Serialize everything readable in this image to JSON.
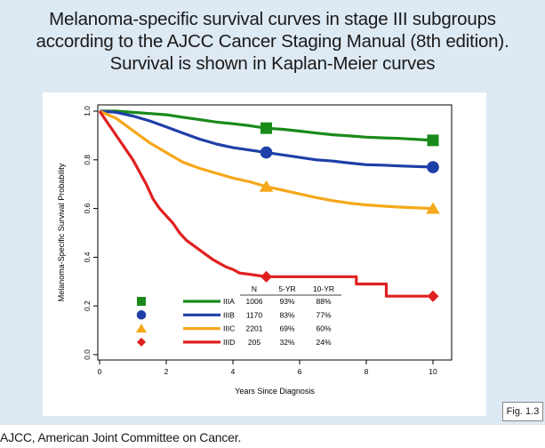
{
  "title_lines": [
    "Melanoma-specific survival curves in stage III subgroups",
    "according to the AJCC Cancer Staging Manual (8th edition).",
    "Survival is shown in Kaplan-Meier curves"
  ],
  "figure_tag": "Fig. 1.3",
  "footnote": "AJCC, American Joint Committee on Cancer.",
  "chart_data": {
    "type": "line",
    "title": "",
    "xlabel": "Years Since Diagnosis",
    "ylabel": "Melanoma-Specific Survival Probability",
    "xlim": [
      0,
      10
    ],
    "ylim": [
      0,
      1
    ],
    "xticks": [
      "0",
      "2",
      "4",
      "6",
      "8",
      "10"
    ],
    "yticks": [
      "0.0",
      "0.2",
      "0.4",
      "0.6",
      "0.8",
      "1.0"
    ],
    "grid": false,
    "series": [
      {
        "name": "IIIA",
        "color": "#1a8a1a",
        "marker": "square",
        "n": "1006",
        "five_yr": "93%",
        "ten_yr": "88%",
        "points": [
          [
            0,
            1.0
          ],
          [
            0.5,
            1.0
          ],
          [
            1,
            0.995
          ],
          [
            1.5,
            0.99
          ],
          [
            2,
            0.985
          ],
          [
            2.5,
            0.975
          ],
          [
            3,
            0.965
          ],
          [
            3.5,
            0.955
          ],
          [
            4,
            0.948
          ],
          [
            4.5,
            0.94
          ],
          [
            5,
            0.93
          ],
          [
            5.5,
            0.925
          ],
          [
            6,
            0.918
          ],
          [
            6.5,
            0.91
          ],
          [
            7,
            0.903
          ],
          [
            7.5,
            0.898
          ],
          [
            8,
            0.893
          ],
          [
            8.5,
            0.89
          ],
          [
            9,
            0.888
          ],
          [
            10,
            0.88
          ]
        ],
        "markers_at": [
          [
            5,
            0.93
          ],
          [
            10,
            0.88
          ]
        ]
      },
      {
        "name": "IIIB",
        "color": "#1f3fa8",
        "marker": "circle",
        "n": "1170",
        "five_yr": "83%",
        "ten_yr": "77%",
        "points": [
          [
            0,
            1.0
          ],
          [
            0.5,
            0.995
          ],
          [
            1,
            0.98
          ],
          [
            1.5,
            0.96
          ],
          [
            2,
            0.935
          ],
          [
            2.5,
            0.91
          ],
          [
            3,
            0.885
          ],
          [
            3.5,
            0.865
          ],
          [
            4,
            0.85
          ],
          [
            4.5,
            0.84
          ],
          [
            5,
            0.83
          ],
          [
            5.5,
            0.82
          ],
          [
            6,
            0.81
          ],
          [
            6.5,
            0.8
          ],
          [
            7,
            0.795
          ],
          [
            7.5,
            0.787
          ],
          [
            8,
            0.78
          ],
          [
            8.5,
            0.778
          ],
          [
            9,
            0.775
          ],
          [
            10,
            0.77
          ]
        ],
        "markers_at": [
          [
            5,
            0.83
          ],
          [
            10,
            0.77
          ]
        ]
      },
      {
        "name": "IIIC",
        "color": "#f5a81a",
        "marker": "triangle",
        "n": "2201",
        "five_yr": "69%",
        "ten_yr": "60%",
        "points": [
          [
            0,
            1.0
          ],
          [
            0.5,
            0.97
          ],
          [
            1,
            0.92
          ],
          [
            1.5,
            0.87
          ],
          [
            2,
            0.83
          ],
          [
            2.5,
            0.79
          ],
          [
            3,
            0.765
          ],
          [
            3.5,
            0.745
          ],
          [
            4,
            0.725
          ],
          [
            4.5,
            0.71
          ],
          [
            5,
            0.69
          ],
          [
            5.5,
            0.675
          ],
          [
            6,
            0.66
          ],
          [
            6.5,
            0.645
          ],
          [
            7,
            0.632
          ],
          [
            7.5,
            0.622
          ],
          [
            8,
            0.615
          ],
          [
            8.5,
            0.61
          ],
          [
            9,
            0.606
          ],
          [
            10,
            0.6
          ]
        ],
        "markers_at": [
          [
            5,
            0.69
          ],
          [
            10,
            0.6
          ]
        ]
      },
      {
        "name": "IIID",
        "color": "#e02020",
        "marker": "diamond",
        "n": "205",
        "five_yr": "32%",
        "ten_yr": "24%",
        "points": [
          [
            0,
            1.0
          ],
          [
            0.2,
            0.96
          ],
          [
            0.4,
            0.92
          ],
          [
            0.6,
            0.88
          ],
          [
            0.8,
            0.84
          ],
          [
            1.0,
            0.8
          ],
          [
            1.2,
            0.75
          ],
          [
            1.4,
            0.7
          ],
          [
            1.6,
            0.64
          ],
          [
            1.8,
            0.6
          ],
          [
            2.0,
            0.57
          ],
          [
            2.2,
            0.54
          ],
          [
            2.4,
            0.5
          ],
          [
            2.6,
            0.47
          ],
          [
            2.8,
            0.45
          ],
          [
            3.0,
            0.43
          ],
          [
            3.2,
            0.41
          ],
          [
            3.4,
            0.39
          ],
          [
            3.6,
            0.375
          ],
          [
            3.8,
            0.36
          ],
          [
            4.0,
            0.35
          ],
          [
            4.2,
            0.335
          ],
          [
            4.5,
            0.33
          ],
          [
            5,
            0.32
          ],
          [
            7.7,
            0.32
          ],
          [
            7.7,
            0.29
          ],
          [
            8.6,
            0.29
          ],
          [
            8.6,
            0.24
          ],
          [
            10,
            0.24
          ]
        ],
        "markers_at": [
          [
            5,
            0.32
          ],
          [
            10,
            0.24
          ]
        ]
      }
    ],
    "table": {
      "headers": [
        "N",
        "5-YR",
        "10-YR"
      ]
    }
  }
}
